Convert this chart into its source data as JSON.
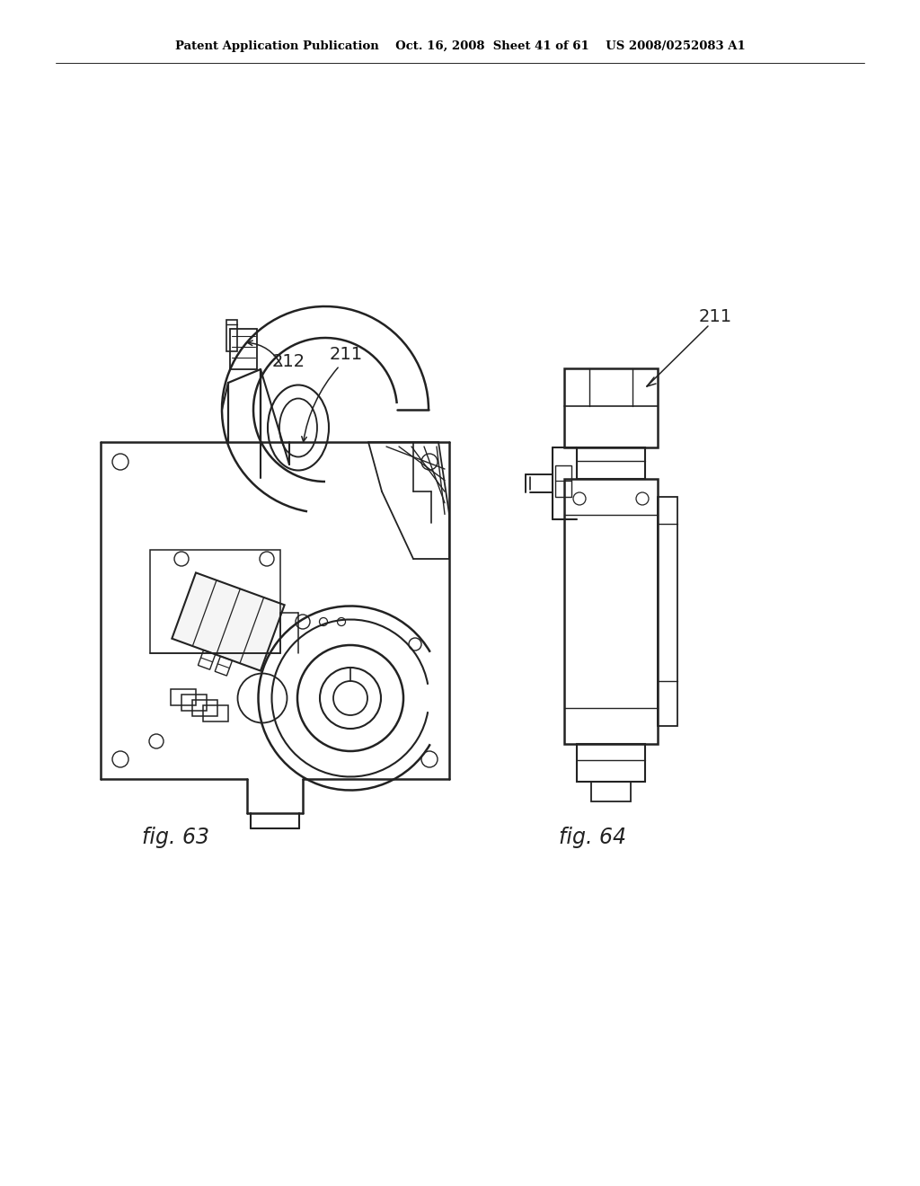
{
  "background_color": "#ffffff",
  "header_text": "Patent Application Publication    Oct. 16, 2008  Sheet 41 of 61    US 2008/0252083 A1",
  "fig63_label": "fig. 63",
  "fig64_label": "fig. 64",
  "ref_212": "212",
  "ref_211_left": "211",
  "ref_211_right": "211",
  "line_color": "#222222"
}
